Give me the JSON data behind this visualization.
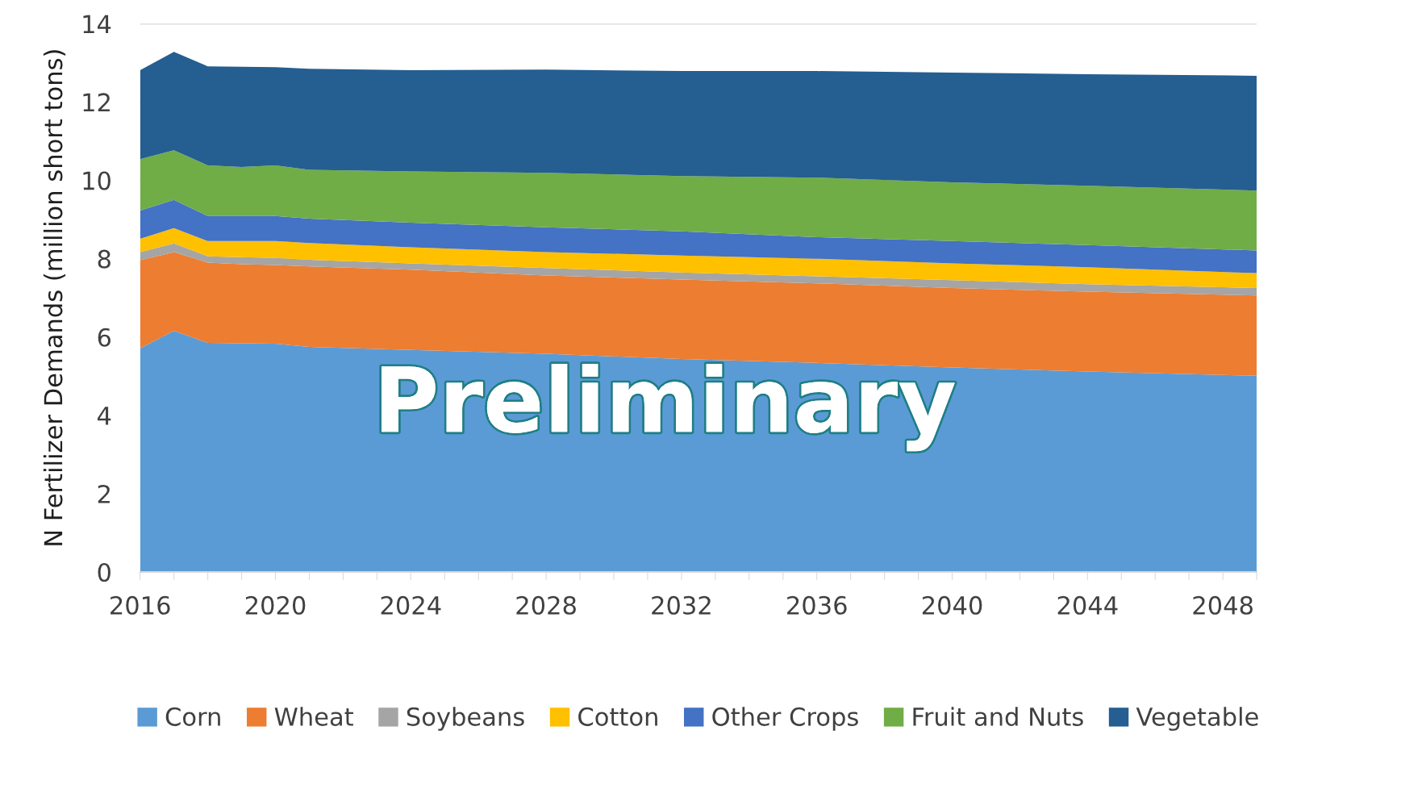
{
  "chart_data": {
    "type": "area",
    "stacked": true,
    "ylabel": "N Fertilizer Demands (million short tons)",
    "x": [
      2016,
      2017,
      2018,
      2019,
      2020,
      2021,
      2024,
      2028,
      2032,
      2036,
      2040,
      2044,
      2049
    ],
    "series": [
      {
        "name": "Corn",
        "color": "#5b9bd5",
        "values": [
          5.71,
          6.16,
          5.85,
          5.84,
          5.83,
          5.75,
          5.67,
          5.57,
          5.44,
          5.34,
          5.22,
          5.12,
          5.01
        ]
      },
      {
        "name": "Wheat",
        "color": "#ed7d31",
        "values": [
          2.25,
          2.01,
          2.05,
          2.02,
          2.01,
          2.05,
          2.05,
          2.0,
          2.03,
          2.03,
          2.03,
          2.04,
          2.05
        ]
      },
      {
        "name": "Soybeans",
        "color": "#a5a5a5",
        "values": [
          0.21,
          0.22,
          0.16,
          0.18,
          0.18,
          0.17,
          0.16,
          0.19,
          0.18,
          0.18,
          0.2,
          0.19,
          0.19
        ]
      },
      {
        "name": "Cotton",
        "color": "#ffc000",
        "values": [
          0.34,
          0.39,
          0.39,
          0.41,
          0.43,
          0.43,
          0.41,
          0.41,
          0.43,
          0.45,
          0.43,
          0.43,
          0.38
        ]
      },
      {
        "name": "Other Crops",
        "color": "#4472c4",
        "values": [
          0.72,
          0.72,
          0.64,
          0.64,
          0.64,
          0.62,
          0.63,
          0.63,
          0.62,
          0.55,
          0.57,
          0.57,
          0.58
        ]
      },
      {
        "name": "Fruit and Nuts",
        "color": "#70ad47",
        "values": [
          1.31,
          1.27,
          1.29,
          1.25,
          1.29,
          1.25,
          1.31,
          1.39,
          1.41,
          1.52,
          1.5,
          1.51,
          1.53
        ]
      },
      {
        "name": "Vegetable",
        "color": "#255e91",
        "values": [
          2.27,
          2.51,
          2.53,
          2.56,
          2.51,
          2.58,
          2.58,
          2.64,
          2.68,
          2.72,
          2.8,
          2.85,
          2.93
        ]
      }
    ],
    "xlim": [
      2016,
      2049
    ],
    "xticks": [
      2016,
      {
        "value": 2017,
        "label": null
      },
      {
        "value": 2018,
        "label": null
      },
      {
        "value": 2019,
        "label": null
      },
      2020,
      {
        "value": 2021,
        "label": null
      },
      {
        "value": 2022,
        "label": null
      },
      {
        "value": 2023,
        "label": null
      },
      2024,
      {
        "value": 2025,
        "label": null
      },
      {
        "value": 2026,
        "label": null
      },
      {
        "value": 2027,
        "label": null
      },
      2028,
      {
        "value": 2029,
        "label": null
      },
      {
        "value": 2030,
        "label": null
      },
      {
        "value": 2031,
        "label": null
      },
      2032,
      {
        "value": 2033,
        "label": null
      },
      {
        "value": 2034,
        "label": null
      },
      {
        "value": 2035,
        "label": null
      },
      2036,
      {
        "value": 2037,
        "label": null
      },
      {
        "value": 2038,
        "label": null
      },
      {
        "value": 2039,
        "label": null
      },
      2040,
      {
        "value": 2041,
        "label": null
      },
      {
        "value": 2042,
        "label": null
      },
      {
        "value": 2043,
        "label": null
      },
      2044,
      {
        "value": 2045,
        "label": null
      },
      {
        "value": 2046,
        "label": null
      },
      {
        "value": 2047,
        "label": null
      },
      2048,
      {
        "value": 2049,
        "label": null
      }
    ],
    "ylim": [
      0,
      14
    ],
    "yticks": [
      0,
      2,
      4,
      6,
      8,
      10,
      12,
      14
    ],
    "grid": "y",
    "legend": "bottom",
    "annotations": [
      "Preliminary"
    ]
  }
}
